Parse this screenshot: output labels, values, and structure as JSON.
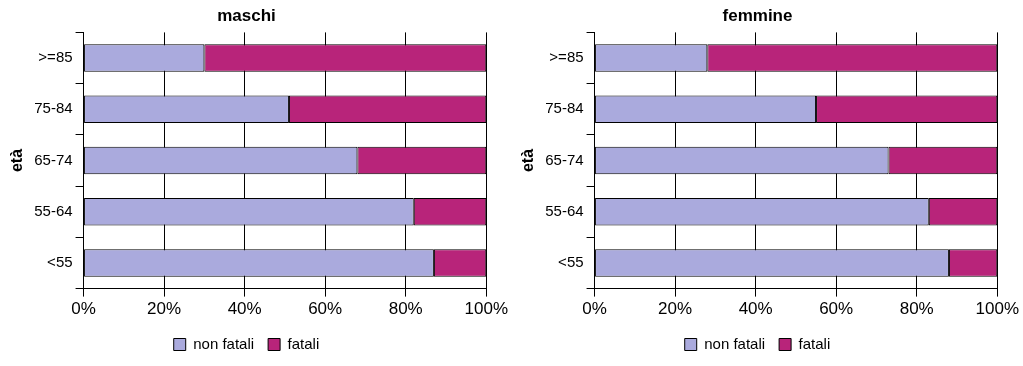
{
  "chart_data": [
    {
      "type": "bar",
      "title": "maschi",
      "orientation": "horizontal",
      "stacked": true,
      "y_label": "età",
      "categories": [
        ">=85",
        "75-84",
        "65-74",
        "55-64",
        "<55"
      ],
      "series": [
        {
          "name": "non fatali",
          "color": "#aaaadd",
          "values": [
            30,
            51,
            68,
            82,
            87
          ]
        },
        {
          "name": "fatali",
          "color": "#b8247a",
          "values": [
            70,
            49,
            32,
            18,
            13
          ]
        }
      ],
      "xlim": [
        0,
        100
      ],
      "xticks": [
        {
          "value": 0,
          "label": "0%"
        },
        {
          "value": 20,
          "label": "20%"
        },
        {
          "value": 40,
          "label": "40%"
        },
        {
          "value": 60,
          "label": "60%"
        },
        {
          "value": 80,
          "label": "80%"
        },
        {
          "value": 100,
          "label": "100%"
        }
      ],
      "grid": true,
      "legend": "bottom"
    },
    {
      "type": "bar",
      "title": "femmine",
      "orientation": "horizontal",
      "stacked": true,
      "y_label": "età",
      "categories": [
        ">=85",
        "75-84",
        "65-74",
        "55-64",
        "<55"
      ],
      "series": [
        {
          "name": "non fatali",
          "color": "#aaaadd",
          "values": [
            28,
            55,
            73,
            83,
            88
          ]
        },
        {
          "name": "fatali",
          "color": "#b8247a",
          "values": [
            72,
            45,
            27,
            17,
            12
          ]
        }
      ],
      "xlim": [
        0,
        100
      ],
      "xticks": [
        {
          "value": 0,
          "label": "0%"
        },
        {
          "value": 20,
          "label": "20%"
        },
        {
          "value": 40,
          "label": "40%"
        },
        {
          "value": 60,
          "label": "60%"
        },
        {
          "value": 80,
          "label": "80%"
        },
        {
          "value": 100,
          "label": "100%"
        }
      ],
      "grid": true,
      "legend": "bottom"
    }
  ]
}
